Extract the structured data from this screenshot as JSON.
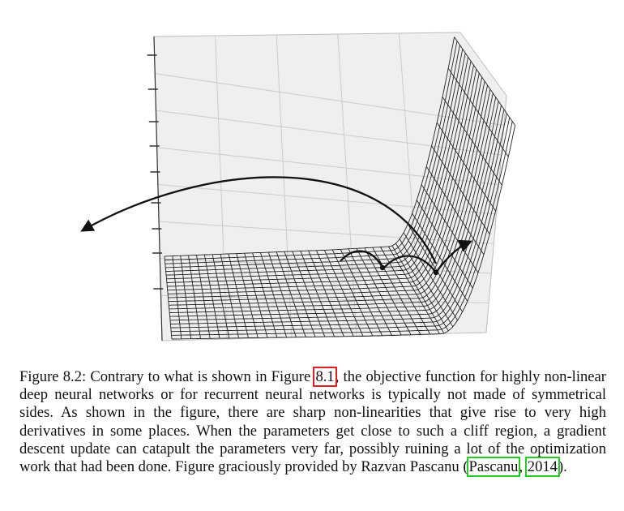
{
  "figure": {
    "label": "Figure 8.2:",
    "description": "3D surface plot of an objective function with a sharp cliff; a gradient descent trajectory is catapulted far away after reaching the cliff",
    "colors": {
      "surface_line": "#222222",
      "wall_fill": "#ececec",
      "wall_grid": "#c8c8c8",
      "trajectory": "#111111"
    }
  },
  "caption": {
    "part1": "Figure 8.2: Contrary to what is shown in Figure ",
    "ref_figure": "8.1",
    "part2": ", the objective function for highly non-linear deep neural networks or for recurrent neural networks is typically not made of symmetrical sides. As shown in the figure, there are sharp non-linearities that give rise to very high derivatives in some places. When the parameters get close to such a cliff region, a gradient descent update can catapult the parameters very far, possibly ruining a lot of the optimization work that had been done. Figure graciously provided by Razvan Pascanu ",
    "paren_open": "(",
    "ref_author": "Pascanu",
    "ref_sep": ", ",
    "ref_year": "2014",
    "paren_close": ")."
  }
}
